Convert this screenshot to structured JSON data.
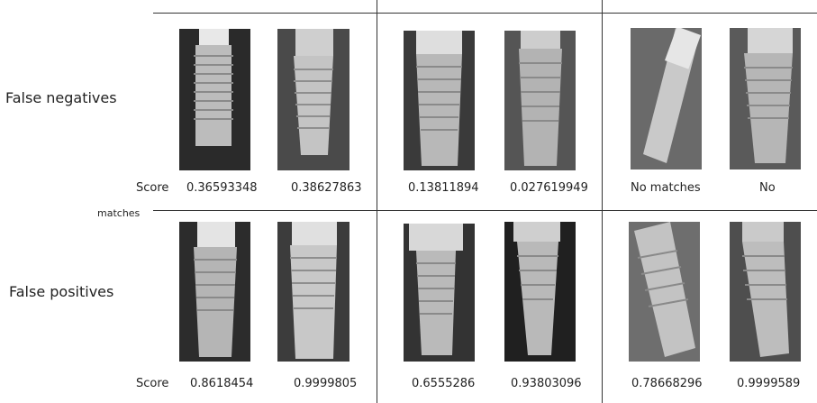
{
  "rows": [
    {
      "label": "False negatives",
      "score_label": "Score",
      "scores": [
        "0.36593348",
        "0.38627863",
        "0.13811894",
        "0.027619949",
        "No matches",
        "No"
      ],
      "continuation": "matches"
    },
    {
      "label": "False positives",
      "score_label": "Score",
      "scores": [
        "0.8618454",
        "0.9999805",
        "0.6555286",
        "0.93803096",
        "0.78668296",
        "0.9999589"
      ]
    }
  ],
  "colors": {
    "background": "#ffffff",
    "divider": "#333333",
    "xray_dark": "#1b1b1b",
    "implant": "#d9d9d9"
  }
}
